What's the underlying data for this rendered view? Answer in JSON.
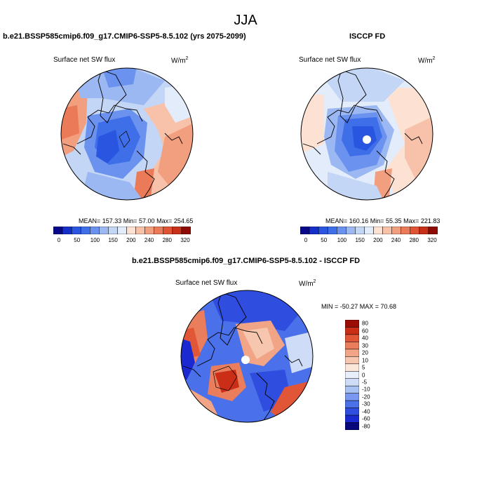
{
  "season": "JJA",
  "panels": [
    {
      "title": "b.e21.BSSP585cmip6.f09_g17.CMIP6-SSP5-8.5.102 (yrs 2075-2099)",
      "variable": "Surface net SW flux",
      "units": "W/m",
      "units_sup": "2",
      "stats": "MEAN= 157.33  Min=  57.00  Max= 254.65"
    },
    {
      "title": "ISCCP FD",
      "variable": "Surface net SW flux",
      "units": "W/m",
      "units_sup": "2",
      "stats": "MEAN= 160.16  Min=  55.35  Max= 221.83"
    },
    {
      "title": "b.e21.BSSP585cmip6.f09_g17.CMIP6-SSP5-8.5.102 - ISCCP FD",
      "variable": "Surface net SW flux",
      "units": "W/m",
      "units_sup": "2",
      "stats": "MIN = -50.27 MAX =  70.68"
    }
  ],
  "colorbar_abs": {
    "colors": [
      "#08088a",
      "#1530c8",
      "#2a55e0",
      "#3f6fe8",
      "#6a92ee",
      "#9cb8f2",
      "#c4d6f6",
      "#e3ecfa",
      "#fde2d4",
      "#f8c2aa",
      "#f29f80",
      "#eb7a58",
      "#e05434",
      "#c93018",
      "#8e0a04"
    ],
    "labels": [
      "0",
      "50",
      "100",
      "150",
      "200",
      "240",
      "280",
      "320"
    ]
  },
  "colorbar_diff": {
    "colors": [
      "#08087a",
      "#1a2ad0",
      "#2f4ee0",
      "#4a70ea",
      "#7a98f0",
      "#a9c2f4",
      "#cfdcf7",
      "#e8eefa",
      "#fbe6da",
      "#f6c6ae",
      "#f1a586",
      "#ea7e5c",
      "#e05636",
      "#cb2e16",
      "#9a0c04"
    ],
    "labels": [
      "80",
      "60",
      "40",
      "30",
      "20",
      "10",
      "5",
      "0",
      "-5",
      "-10",
      "-20",
      "-30",
      "-40",
      "-60",
      "-80"
    ]
  },
  "colors": {
    "ocean_blue": "#3f6fe8",
    "land_red": "#eb7a58",
    "coastline": "#000000"
  }
}
